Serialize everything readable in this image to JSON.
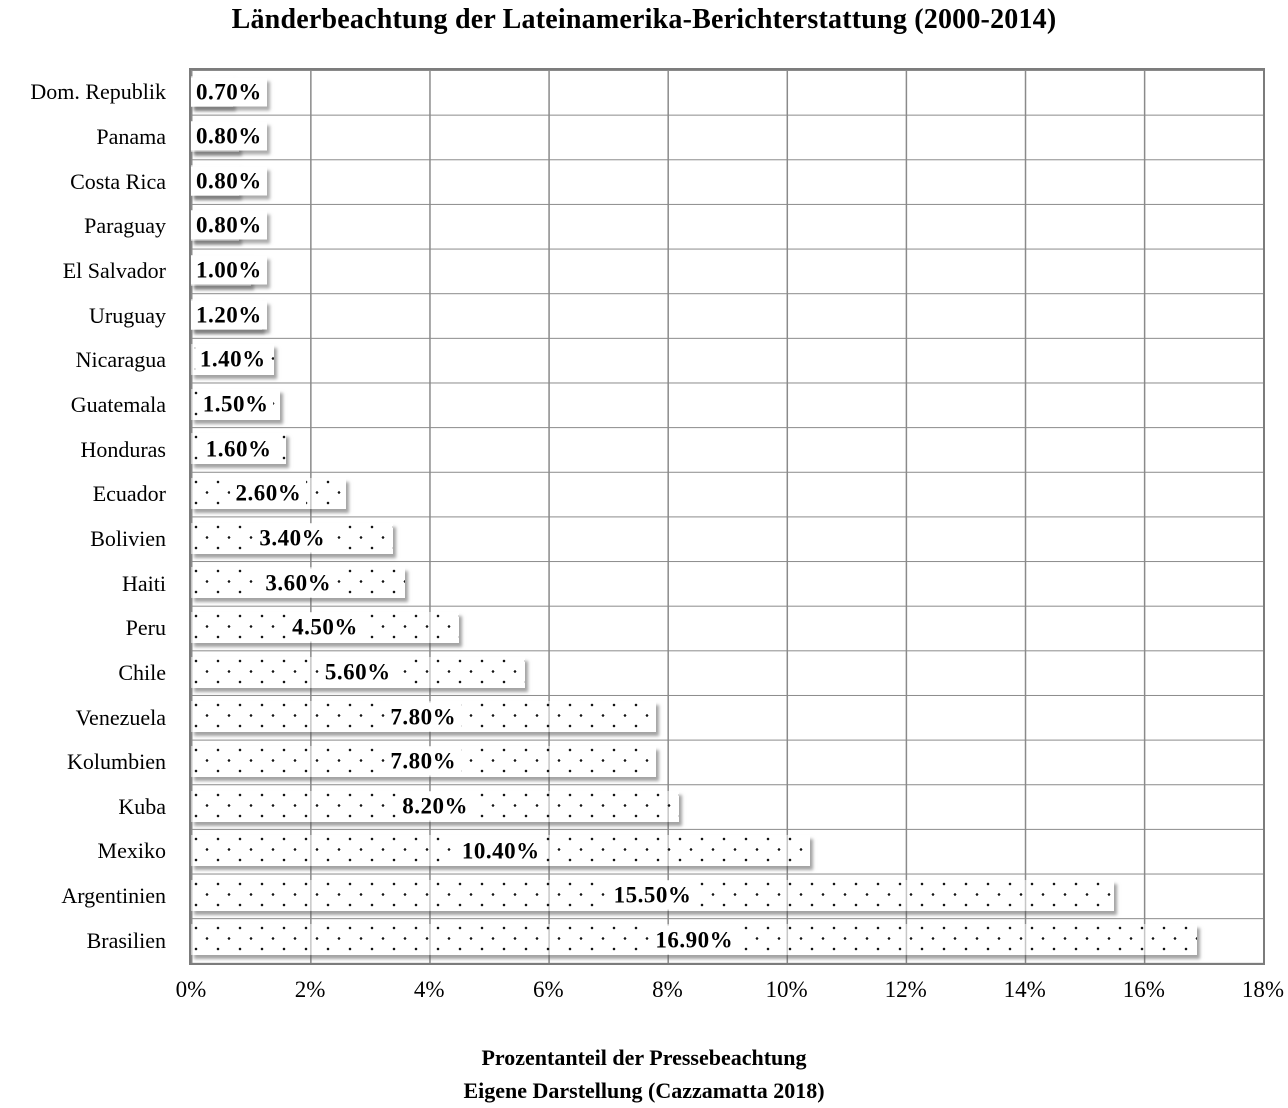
{
  "title": "Länderbeachtung der Lateinamerika-Berichterstattung (2000-2014)",
  "chart_data": {
    "type": "bar",
    "orientation": "horizontal",
    "title": "Länderbeachtung der Lateinamerika-Berichterstattung (2000-2014)",
    "categories": [
      "Dom. Republik",
      "Panama",
      "Costa Rica",
      "Paraguay",
      "El Salvador",
      "Uruguay",
      "Nicaragua",
      "Guatemala",
      "Honduras",
      "Ecuador",
      "Bolivien",
      "Haiti",
      "Peru",
      "Chile",
      "Venezuela",
      "Kolumbien",
      "Kuba",
      "Mexiko",
      "Argentinien",
      "Brasilien"
    ],
    "values": [
      0.7,
      0.8,
      0.8,
      0.8,
      1.0,
      1.2,
      1.4,
      1.5,
      1.6,
      2.6,
      3.4,
      3.6,
      4.5,
      5.6,
      7.8,
      7.8,
      8.2,
      10.4,
      15.5,
      16.9
    ],
    "data_labels": [
      "0.70%",
      "0.80%",
      "0.80%",
      "0.80%",
      "1.00%",
      "1.20%",
      "1.40%",
      "1.50%",
      "1.60%",
      "2.60%",
      "3.40%",
      "3.60%",
      "4.50%",
      "5.60%",
      "7.80%",
      "7.80%",
      "8.20%",
      "10.40%",
      "15.50%",
      "16.90%"
    ],
    "xlabel": "Prozentanteil der Pressebeachtung",
    "source": "Eigene Darstellung (Cazzamatta 2018)",
    "xlim": [
      0,
      18
    ],
    "x_ticks": [
      "0%",
      "2%",
      "4%",
      "6%",
      "8%",
      "10%",
      "12%",
      "14%",
      "16%",
      "18%"
    ],
    "grid": true,
    "legend": "none",
    "bar_style": "white with black dot pattern, gray drop shadow",
    "colors": {
      "bar_fill": "#ffffff",
      "bar_dots": "#141414",
      "gridline": "#8a8a8a",
      "plot_border": "#7c7c7c",
      "text": "#000000",
      "shadow": "#5a5a5a"
    }
  }
}
